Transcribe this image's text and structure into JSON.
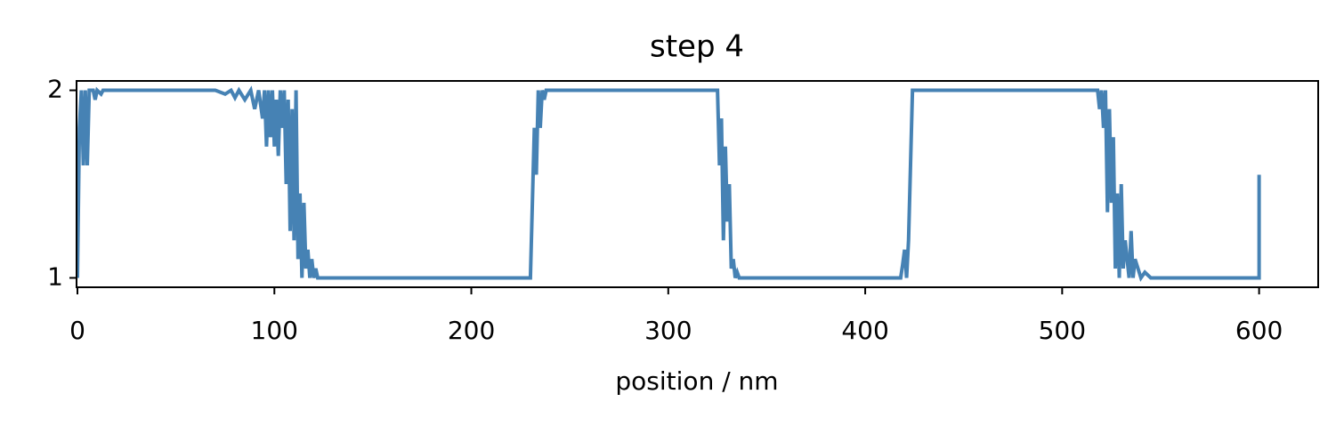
{
  "chart_data": {
    "type": "line",
    "title": "step 4",
    "x_label": "position / nm",
    "xlim": [
      0,
      630
    ],
    "ylim": [
      0.95,
      2.05
    ],
    "xticks": [
      0,
      100,
      200,
      300,
      400,
      500,
      600
    ],
    "yticks": [
      1,
      2
    ],
    "series": [
      {
        "color": "#4682b4",
        "x": [
          0,
          0.5,
          1,
          2,
          3,
          4,
          5,
          6,
          8,
          9,
          10,
          12,
          13,
          70,
          75,
          78,
          80,
          82,
          85,
          88,
          90,
          92,
          94,
          95,
          96,
          97,
          98,
          99,
          100,
          101,
          102,
          103,
          104,
          105,
          106,
          107,
          108,
          109,
          110,
          111,
          112,
          113,
          114,
          115,
          116,
          117,
          118,
          119,
          120,
          121,
          122,
          230,
          231,
          232,
          233,
          234,
          235,
          236,
          237,
          238,
          325,
          326,
          327,
          328,
          329,
          330,
          331,
          332,
          333,
          334,
          335,
          336,
          418,
          419,
          420,
          421,
          422,
          423,
          424,
          518,
          519,
          520,
          521,
          522,
          523,
          524,
          525,
          526,
          527,
          528,
          529,
          530,
          531,
          532,
          534,
          535,
          536,
          537,
          540,
          542,
          545,
          600,
          600
        ],
        "values": [
          1,
          1.4,
          1.8,
          2,
          1.6,
          2,
          1.6,
          2,
          2,
          1.95,
          2,
          1.98,
          2,
          2,
          1.98,
          2,
          1.96,
          2,
          1.95,
          2,
          1.9,
          2,
          1.85,
          2,
          1.7,
          2,
          1.75,
          2,
          1.7,
          1.95,
          1.65,
          2,
          1.8,
          2,
          1.5,
          1.95,
          1.25,
          1.9,
          1.2,
          2,
          1.1,
          1.45,
          1,
          1.4,
          1.05,
          1.15,
          1,
          1.1,
          1,
          1.05,
          1,
          1,
          1.4,
          1.8,
          1.55,
          2,
          1.8,
          2,
          1.95,
          2,
          2,
          1.6,
          1.85,
          1.2,
          1.7,
          1.3,
          1.5,
          1.05,
          1.1,
          1,
          1.03,
          1,
          1,
          1.07,
          1.15,
          1,
          1.2,
          1.6,
          2,
          2,
          1.9,
          2,
          1.8,
          2,
          1.35,
          1.9,
          1.4,
          1.75,
          1.05,
          1.45,
          1,
          1.5,
          1.05,
          1.2,
          1,
          1.25,
          1,
          1.1,
          1,
          1.03,
          1,
          1,
          1.55
        ]
      }
    ]
  }
}
